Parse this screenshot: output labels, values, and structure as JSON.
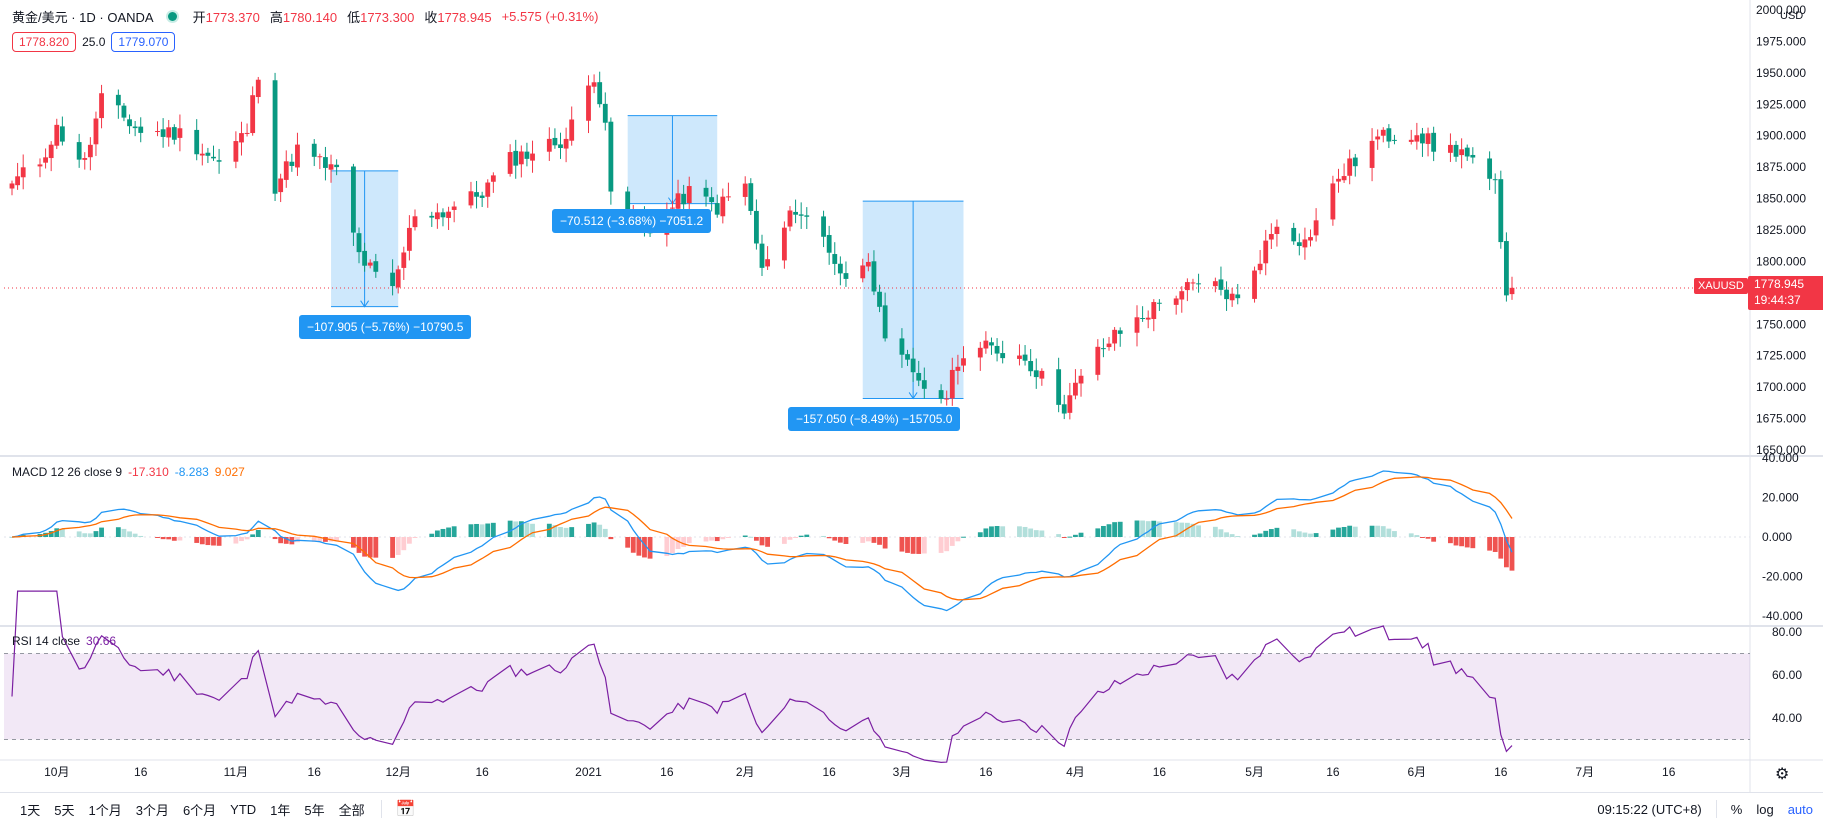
{
  "header": {
    "symbol": "黄金/美元 · 1D · OANDA",
    "open_label": "开",
    "open": "1773.370",
    "high_label": "高",
    "high": "1780.140",
    "low_label": "低",
    "low": "1773.300",
    "close_label": "收",
    "close": "1778.945",
    "change": "+5.575 (+0.31%)"
  },
  "quote": {
    "bid": "1778.820",
    "spread": "25.0",
    "ask": "1779.070"
  },
  "last_price": {
    "symbol": "XAUUSD",
    "price": "1778.945",
    "countdown": "19:44:37"
  },
  "price_axis": {
    "unit": "USD",
    "ticks": [
      "2000.000",
      "1975.000",
      "1950.000",
      "1925.000",
      "1900.000",
      "1875.000",
      "1850.000",
      "1825.000",
      "1800.000",
      "1775.000",
      "1750.000",
      "1725.000",
      "1700.000",
      "1675.000",
      "1650.000"
    ]
  },
  "macd": {
    "title": "MACD 12 26 close 9",
    "hist": "-17.310",
    "macd": "-8.283",
    "signal": "9.027",
    "ticks": [
      "40.000",
      "20.000",
      "0.000",
      "-20.000",
      "-40.000"
    ]
  },
  "rsi": {
    "title": "RSI 14 close",
    "value": "30.66",
    "ticks": [
      "80.00",
      "60.00",
      "40.00"
    ]
  },
  "time_axis": [
    "10月",
    "16",
    "11月",
    "16",
    "12月",
    "16",
    "2021",
    "16",
    "2月",
    "16",
    "3月",
    "16",
    "4月",
    "16",
    "5月",
    "16",
    "6月",
    "16",
    "7月",
    "16"
  ],
  "measures": [
    {
      "label": "−107.905 (−5.76%) −10790.5"
    },
    {
      "label": "−70.512 (−3.68%) −7051.2"
    },
    {
      "label": "−157.050 (−8.49%) −15705.0"
    }
  ],
  "toolbar": {
    "ranges": [
      "1天",
      "5天",
      "1个月",
      "3个月",
      "6个月",
      "YTD",
      "1年",
      "5年",
      "全部"
    ],
    "clock": "09:15:22 (UTC+8)",
    "percent": "%",
    "log": "log",
    "auto": "auto"
  },
  "colors": {
    "up": "#f23645",
    "down": "#089981",
    "macd": "#2196f3",
    "signal": "#ff6d00",
    "rsi": "#7b1fa2",
    "measure": "#2196f3"
  },
  "chart_data": {
    "type": "candlestick",
    "symbol": "XAUUSD",
    "interval": "1D",
    "ylim": [
      1650,
      2000
    ],
    "x_range": [
      "2020-09-23",
      "2021-06-18"
    ],
    "anchors": [
      {
        "date": "2020-09-23",
        "close": 1862
      },
      {
        "date": "2020-09-28",
        "close": 1880
      },
      {
        "date": "2020-10-01",
        "close": 1905
      },
      {
        "date": "2020-10-06",
        "close": 1878
      },
      {
        "date": "2020-10-09",
        "close": 1929
      },
      {
        "date": "2020-10-16",
        "close": 1903
      },
      {
        "date": "2020-10-23",
        "close": 1902
      },
      {
        "date": "2020-10-30",
        "close": 1878
      },
      {
        "date": "2020-11-04",
        "close": 1904
      },
      {
        "date": "2020-11-06",
        "close": 1951
      },
      {
        "date": "2020-11-09",
        "close": 1860
      },
      {
        "date": "2020-11-13",
        "close": 1889
      },
      {
        "date": "2020-11-20",
        "close": 1871
      },
      {
        "date": "2020-11-24",
        "close": 1805
      },
      {
        "date": "2020-11-27",
        "close": 1788
      },
      {
        "date": "2020-11-30",
        "close": 1776
      },
      {
        "date": "2020-12-04",
        "close": 1839
      },
      {
        "date": "2020-12-09",
        "close": 1839
      },
      {
        "date": "2020-12-16",
        "close": 1855
      },
      {
        "date": "2020-12-21",
        "close": 1881
      },
      {
        "date": "2020-12-31",
        "close": 1898
      },
      {
        "date": "2021-01-05",
        "close": 1949
      },
      {
        "date": "2021-01-07",
        "close": 1913
      },
      {
        "date": "2021-01-08",
        "close": 1849
      },
      {
        "date": "2021-01-15",
        "close": 1828
      },
      {
        "date": "2021-01-22",
        "close": 1855
      },
      {
        "date": "2021-01-27",
        "close": 1843
      },
      {
        "date": "2021-02-01",
        "close": 1861
      },
      {
        "date": "2021-02-04",
        "close": 1792
      },
      {
        "date": "2021-02-10",
        "close": 1843
      },
      {
        "date": "2021-02-15",
        "close": 1819
      },
      {
        "date": "2021-02-19",
        "close": 1783
      },
      {
        "date": "2021-02-23",
        "close": 1806
      },
      {
        "date": "2021-02-26",
        "close": 1733
      },
      {
        "date": "2021-03-03",
        "close": 1713
      },
      {
        "date": "2021-03-08",
        "close": 1684
      },
      {
        "date": "2021-03-11",
        "close": 1723
      },
      {
        "date": "2021-03-16",
        "close": 1731
      },
      {
        "date": "2021-03-23",
        "close": 1724
      },
      {
        "date": "2021-03-30",
        "close": 1685
      },
      {
        "date": "2021-04-05",
        "close": 1728
      },
      {
        "date": "2021-04-09",
        "close": 1744
      },
      {
        "date": "2021-04-15",
        "close": 1763
      },
      {
        "date": "2021-04-20",
        "close": 1778
      },
      {
        "date": "2021-04-26",
        "close": 1780
      },
      {
        "date": "2021-04-30",
        "close": 1768
      },
      {
        "date": "2021-05-07",
        "close": 1831
      },
      {
        "date": "2021-05-12",
        "close": 1815
      },
      {
        "date": "2021-05-18",
        "close": 1867
      },
      {
        "date": "2021-05-25",
        "close": 1898
      },
      {
        "date": "2021-06-01",
        "close": 1904
      },
      {
        "date": "2021-06-04",
        "close": 1891
      },
      {
        "date": "2021-06-09",
        "close": 1888
      },
      {
        "date": "2021-06-11",
        "close": 1877
      },
      {
        "date": "2021-06-15",
        "close": 1858
      },
      {
        "date": "2021-06-16",
        "close": 1812
      },
      {
        "date": "2021-06-17",
        "close": 1773
      },
      {
        "date": "2021-06-18",
        "close": 1779
      }
    ],
    "macd_ylim": [
      -40,
      40
    ],
    "rsi_ylim": [
      20,
      80
    ],
    "rsi_band": [
      30,
      70
    ]
  }
}
